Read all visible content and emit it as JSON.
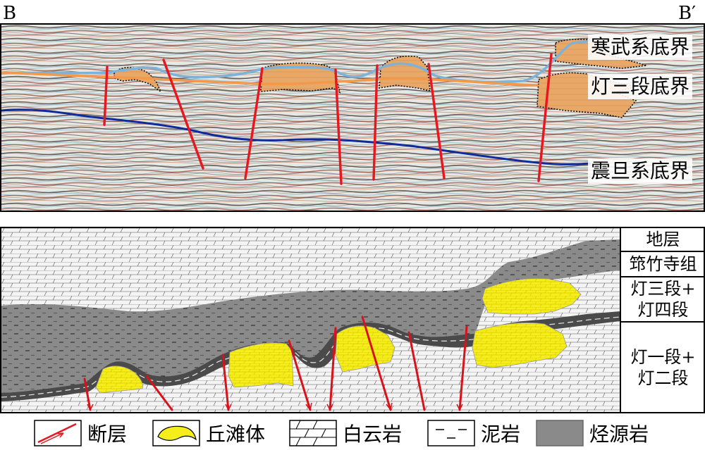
{
  "labels": {
    "left": "B",
    "right": "B′"
  },
  "top_panel": {
    "horizons": {
      "cambrian": "寒武系底界",
      "deng3": "灯三段底界",
      "sinian": "震旦系底界"
    }
  },
  "strat_column": {
    "rows": [
      {
        "label": "地层"
      },
      {
        "label": "筇竹寺组"
      },
      {
        "label": "灯三段+\n灯四段"
      },
      {
        "label": "灯一段+\n灯二段"
      }
    ]
  },
  "legend": [
    {
      "icon": "fault-icon",
      "label": "断层"
    },
    {
      "icon": "shoal-icon",
      "label": "丘滩体"
    },
    {
      "icon": "dolomite-icon",
      "label": "白云岩"
    },
    {
      "icon": "mudstone-icon",
      "label": "泥岩"
    },
    {
      "icon": "source-rock-icon",
      "label": "烃源岩"
    }
  ],
  "colors": {
    "shoal_fill": "#e8a868",
    "shoal_yellow": "#f5ee1a",
    "fault_red": "#e8161e",
    "cambrian_line": "#7fb2d8",
    "deng3_line": "#f29a4a",
    "sinian_line": "#0f2a9a",
    "source_rock": "#8a8a8a"
  }
}
